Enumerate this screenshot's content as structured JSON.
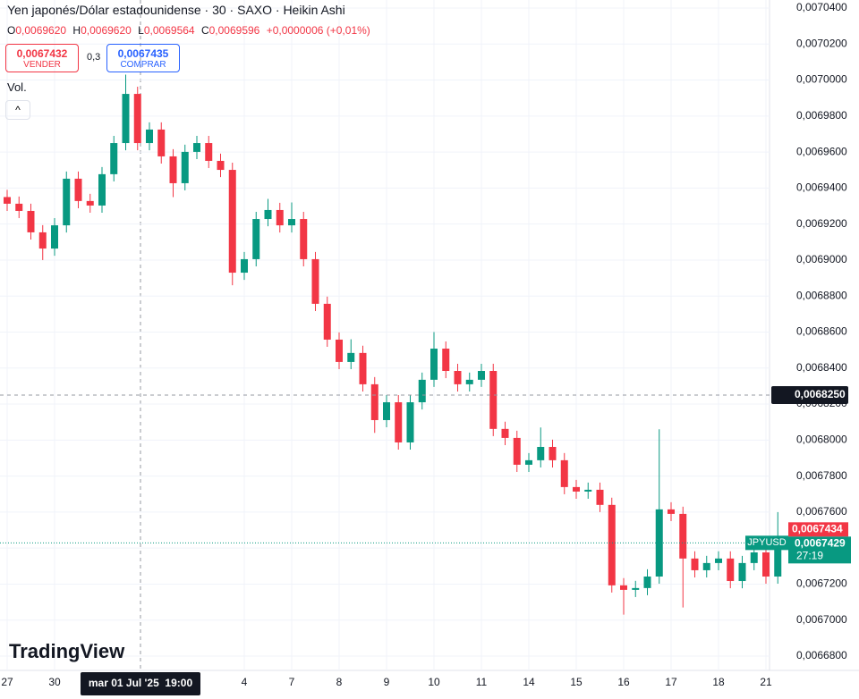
{
  "chart_data": {
    "type": "candlestick",
    "title": "Yen japonés/Dólar estadounidense · 30 · SAXO · Heikin Ashi",
    "ohlc_legend": [
      {
        "name": "O",
        "value": {
          "value": 0.006962,
          "label": "0,0069620"
        }
      },
      {
        "name": "H",
        "value": {
          "value": 0.006962,
          "label": "0,0069620"
        }
      },
      {
        "name": "L",
        "value": {
          "value": 0.0069564,
          "label": "0,0069564"
        }
      },
      {
        "name": "C",
        "value": {
          "value": 0.0069596,
          "label": "0,0069596"
        }
      }
    ],
    "change": "+0,0000006 (+0,01%)",
    "sell": {
      "price": {
        "value": 0.0067432,
        "label": "0,0067432"
      },
      "label": "VENDER"
    },
    "spread": "0,3",
    "buy": {
      "price": {
        "value": 0.0067435,
        "label": "0,0067435"
      },
      "label": "COMPRAR"
    },
    "volume_label": "Vol.",
    "logo": "TradingView",
    "up_color": "#089981",
    "down_color": "#f23645",
    "categories": [
      "27",
      null,
      null,
      null,
      "30",
      null,
      null,
      null,
      null,
      null,
      null,
      null,
      null,
      null,
      null,
      null,
      null,
      null,
      null,
      null,
      "4",
      null,
      null,
      null,
      "7",
      null,
      null,
      null,
      "8",
      null,
      null,
      null,
      "9",
      null,
      null,
      null,
      "10",
      null,
      null,
      null,
      "11",
      null,
      null,
      null,
      "14",
      null,
      null,
      null,
      "15",
      null,
      null,
      null,
      "16",
      null,
      null,
      null,
      "17",
      null,
      null,
      null,
      "18",
      null,
      null,
      null,
      "21",
      null
    ],
    "open": [
      0.006935,
      0.0069313,
      0.0069273,
      0.0069154,
      0.0069064,
      0.0069193,
      0.0069452,
      0.0069328,
      0.0069303,
      0.0069477,
      0.006965,
      0.0069923,
      0.006965,
      0.0069725,
      0.0069576,
      0.0069427,
      0.0069601,
      0.006965,
      0.0069551,
      0.0069501,
      0.006893,
      0.0069005,
      0.0069228,
      0.0069278,
      0.0069193,
      0.0069228,
      0.0069005,
      0.0068757,
      0.0068558,
      0.0068434,
      0.0068484,
      0.006831,
      0.0068111,
      0.006821,
      0.0067987,
      0.006821,
      0.0068335,
      0.0068508,
      0.0068384,
      0.006831,
      0.0068335,
      0.0068384,
      0.0068062,
      0.0068012,
      0.0067863,
      0.0067888,
      0.0067962,
      0.0067888,
      0.0067739,
      0.0067714,
      0.0067724,
      0.006764,
      0.0067193,
      0.0067168,
      0.0067178,
      0.0067242,
      0.0067615,
      0.006759,
      0.0067342,
      0.0067277,
      0.0067317,
      0.0067342,
      0.0067217,
      0.0067317,
      0.0067376,
      0.0067242
    ],
    "close": [
      0.0069313,
      0.0069273,
      0.0069154,
      0.0069064,
      0.0069193,
      0.0069452,
      0.0069328,
      0.0069303,
      0.0069477,
      0.006965,
      0.0069923,
      0.006965,
      0.0069725,
      0.0069576,
      0.0069427,
      0.0069601,
      0.006965,
      0.0069551,
      0.0069501,
      0.006893,
      0.0069005,
      0.0069228,
      0.0069278,
      0.0069193,
      0.0069228,
      0.0069005,
      0.0068757,
      0.0068558,
      0.0068434,
      0.0068484,
      0.006831,
      0.0068111,
      0.006821,
      0.0067987,
      0.006821,
      0.0068335,
      0.0068508,
      0.0068384,
      0.006831,
      0.0068335,
      0.0068384,
      0.0068062,
      0.0068012,
      0.0067863,
      0.0067888,
      0.0067962,
      0.0067888,
      0.0067739,
      0.0067714,
      0.0067724,
      0.006764,
      0.0067193,
      0.0067168,
      0.0067178,
      0.0067242,
      0.0067615,
      0.006759,
      0.0067342,
      0.0067277,
      0.0067317,
      0.0067342,
      0.0067217,
      0.0067317,
      0.0067376,
      0.0067242,
      0.0067429
    ],
    "high": [
      0.006939,
      0.0069353,
      0.0069313,
      0.0069194,
      0.0069233,
      0.0069492,
      0.0069492,
      0.0069368,
      0.0069517,
      0.006969,
      0.007003,
      0.0069963,
      0.0069765,
      0.0069765,
      0.0069616,
      0.0069641,
      0.006969,
      0.006969,
      0.0069591,
      0.0069541,
      0.0069045,
      0.0069268,
      0.006934,
      0.0069318,
      0.006932,
      0.0069268,
      0.0069045,
      0.0068797,
      0.0068598,
      0.006856,
      0.0068524,
      0.006835,
      0.006825,
      0.006825,
      0.006825,
      0.0068375,
      0.00686,
      0.0068548,
      0.0068424,
      0.0068375,
      0.0068424,
      0.0068424,
      0.0068102,
      0.0068052,
      0.0067928,
      0.006807,
      0.0068002,
      0.0067928,
      0.0067779,
      0.0067764,
      0.0067764,
      0.006768,
      0.0067233,
      0.0067218,
      0.0067282,
      0.006806,
      0.0067655,
      0.006763,
      0.0067382,
      0.0067357,
      0.0067382,
      0.0067382,
      0.0067357,
      0.0067416,
      0.0067416,
      0.00676
    ],
    "low": [
      0.0069273,
      0.0069233,
      0.0069114,
      0.0069,
      0.0069024,
      0.0069153,
      0.0069288,
      0.0069263,
      0.0069263,
      0.0069437,
      0.006961,
      0.006961,
      0.006961,
      0.0069536,
      0.006935,
      0.0069387,
      0.0069561,
      0.0069511,
      0.0069461,
      0.006886,
      0.006889,
      0.0068965,
      0.0069188,
      0.0069153,
      0.0069153,
      0.0068965,
      0.0068717,
      0.0068518,
      0.0068394,
      0.0068394,
      0.006827,
      0.006804,
      0.0068071,
      0.0067947,
      0.0067947,
      0.006817,
      0.0068295,
      0.0068344,
      0.006827,
      0.006827,
      0.0068295,
      0.0068022,
      0.0067972,
      0.0067823,
      0.0067823,
      0.0067848,
      0.0067848,
      0.0067699,
      0.0067674,
      0.0067674,
      0.00676,
      0.0067153,
      0.006703,
      0.0067128,
      0.0067138,
      0.0067202,
      0.006755,
      0.006707,
      0.0067237,
      0.0067237,
      0.0067277,
      0.0067177,
      0.0067177,
      0.0067277,
      0.0067202,
      0.0067202
    ],
    "ylim": [
      0.00668,
      0.00704
    ],
    "yticks": [
      {
        "value": 0.00668,
        "label": "0,0066800"
      },
      {
        "value": 0.0067,
        "label": "0,0067000"
      },
      {
        "value": 0.00672,
        "label": "0,0067200"
      },
      {
        "value": 0.00674,
        "label": "0,0067400"
      },
      {
        "value": 0.00676,
        "label": "0,0067600"
      },
      {
        "value": 0.00678,
        "label": "0,0067800"
      },
      {
        "value": 0.0068,
        "label": "0,0068000"
      },
      {
        "value": 0.00682,
        "label": "0,0068200"
      },
      {
        "value": 0.00684,
        "label": "0,0068400"
      },
      {
        "value": 0.00686,
        "label": "0,0068600"
      },
      {
        "value": 0.00688,
        "label": "0,0068800"
      },
      {
        "value": 0.0069,
        "label": "0,0069000"
      },
      {
        "value": 0.00692,
        "label": "0,0069200"
      },
      {
        "value": 0.00694,
        "label": "0,0069400"
      },
      {
        "value": 0.00696,
        "label": "0,0069600"
      },
      {
        "value": 0.00698,
        "label": "0,0069800"
      },
      {
        "value": 0.007,
        "label": "0,0070000"
      },
      {
        "value": 0.00702,
        "label": "0,0070200"
      },
      {
        "value": 0.00704,
        "label": "0,0070400"
      }
    ],
    "grid": true,
    "ask_line": {
      "value": 0.0067434,
      "label": "0,0067434"
    },
    "last_price": {
      "symbol": "JPYUSD",
      "price": {
        "value": 0.0067429,
        "label": "0,0067429"
      },
      "countdown": "27:19"
    },
    "crosshair": {
      "x_label": "mar 01 Jul '25  19:00",
      "y": {
        "value": 0.006825,
        "label": "0,0068250"
      }
    }
  }
}
